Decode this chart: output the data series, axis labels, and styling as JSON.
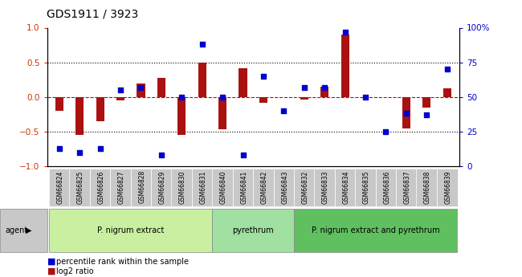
{
  "title": "GDS1911 / 3923",
  "samples": [
    "GSM66824",
    "GSM66825",
    "GSM66826",
    "GSM66827",
    "GSM66828",
    "GSM66829",
    "GSM66830",
    "GSM66831",
    "GSM66840",
    "GSM66841",
    "GSM66842",
    "GSM66843",
    "GSM66832",
    "GSM66833",
    "GSM66834",
    "GSM66835",
    "GSM66836",
    "GSM66837",
    "GSM66838",
    "GSM66839"
  ],
  "log2_ratio": [
    -0.2,
    -0.55,
    -0.35,
    -0.05,
    0.2,
    0.27,
    -0.55,
    0.5,
    -0.47,
    0.42,
    -0.08,
    0.0,
    -0.04,
    0.15,
    0.9,
    0.0,
    0.0,
    -0.45,
    -0.15,
    0.12
  ],
  "pct_rank": [
    13,
    10,
    13,
    55,
    57,
    8,
    50,
    88,
    50,
    8,
    65,
    40,
    57,
    57,
    97,
    50,
    25,
    38,
    37,
    70
  ],
  "groups": [
    {
      "label": "P. nigrum extract",
      "start": 0,
      "end": 7,
      "color": "#c8f0a0"
    },
    {
      "label": "pyrethrum",
      "start": 8,
      "end": 11,
      "color": "#a0e0a0"
    },
    {
      "label": "P. nigrum extract and pyrethrum",
      "start": 12,
      "end": 19,
      "color": "#60c060"
    }
  ],
  "bar_color": "#aa1111",
  "dot_color": "#0000cc",
  "zero_line_color": "#cc0000",
  "ylim_left": [
    -1,
    1
  ],
  "ylim_right": [
    0,
    100
  ],
  "yticks_left": [
    -1,
    -0.5,
    0,
    0.5,
    1
  ],
  "yticks_right": [
    0,
    25,
    50,
    75,
    100
  ],
  "hlines": [
    -0.5,
    0.5
  ],
  "bar_width": 0.4,
  "gray_bg": "#c8c8c8",
  "group_border": "#888888"
}
